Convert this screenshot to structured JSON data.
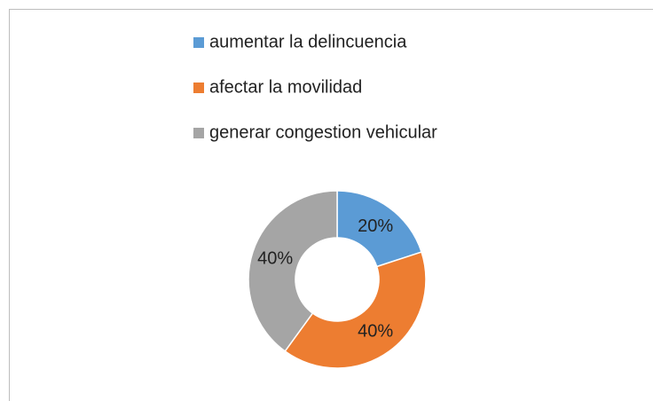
{
  "chart_data": {
    "type": "donut",
    "categories": [
      "aumentar la delincuencia",
      "afectar la movilidad",
      "generar congestion vehicular"
    ],
    "values": [
      20,
      40,
      40
    ],
    "value_labels": [
      "20%",
      "40%",
      "40%"
    ],
    "colors": [
      "#5b9bd5",
      "#ed7d31",
      "#a5a5a5"
    ],
    "legend": "top"
  }
}
